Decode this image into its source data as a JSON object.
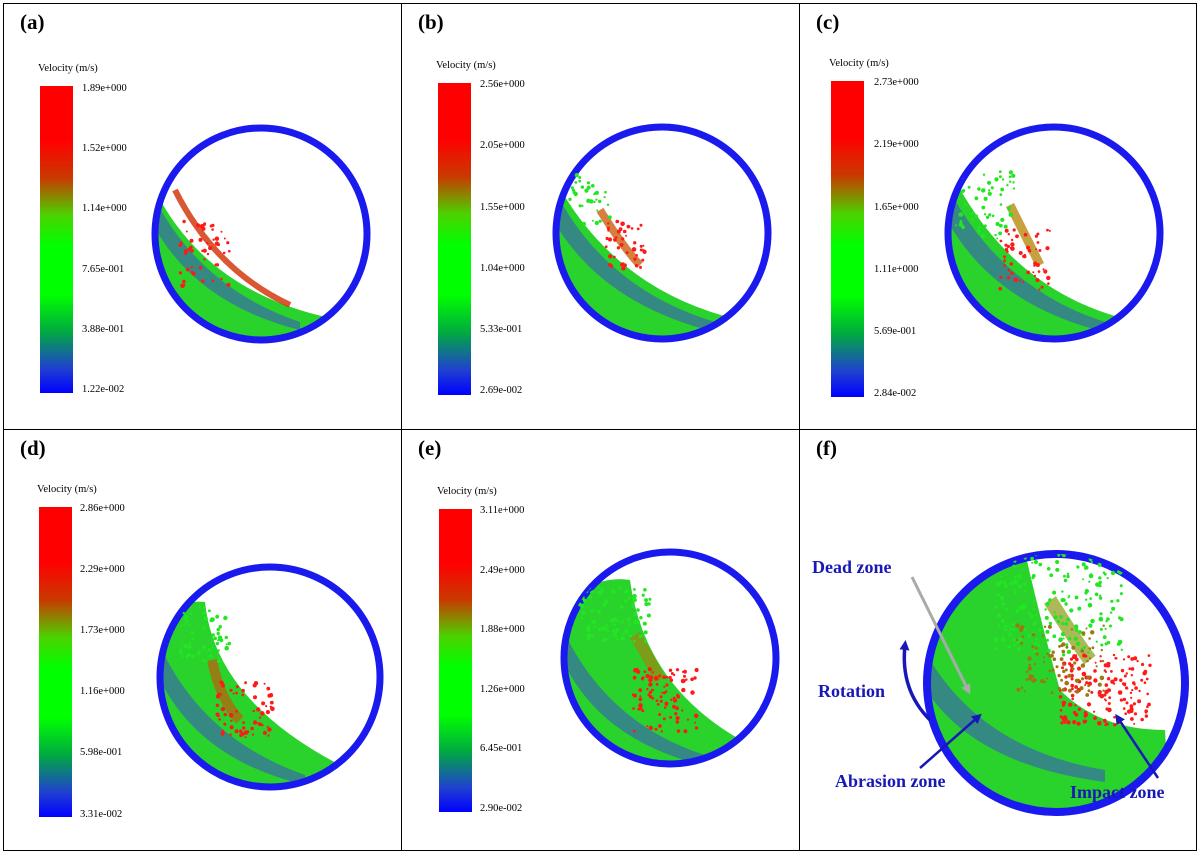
{
  "velocity_label": "Velocity (m/s)",
  "panels": [
    {
      "label": "(a)",
      "ticks": [
        "1.89e+000",
        "1.52e+000",
        "1.14e+000",
        "7.65e-001",
        "3.88e-001",
        "1.22e-002"
      ]
    },
    {
      "label": "(b)",
      "ticks": [
        "2.56e+000",
        "2.05e+000",
        "1.55e+000",
        "1.04e+000",
        "5.33e-001",
        "2.69e-002"
      ]
    },
    {
      "label": "(c)",
      "ticks": [
        "2.73e+000",
        "2.19e+000",
        "1.65e+000",
        "1.11e+000",
        "5.69e-001",
        "2.84e-002"
      ]
    },
    {
      "label": "(d)",
      "ticks": [
        "2.86e+000",
        "2.29e+000",
        "1.73e+000",
        "1.16e+000",
        "5.98e-001",
        "3.31e-002"
      ]
    },
    {
      "label": "(e)",
      "ticks": [
        "3.11e+000",
        "2.49e+000",
        "1.88e+000",
        "1.26e+000",
        "6.45e-001",
        "2.90e-002"
      ]
    },
    {
      "label": "(f)",
      "ticks": []
    }
  ],
  "annotations": {
    "dead_zone": "Dead zone",
    "rotation": "Rotation",
    "abrasion_zone": "Abrasion zone",
    "impact_zone": "Impact zone"
  },
  "colors": {
    "mill_wall": "#1a1aee",
    "annotation": "#1818b8",
    "dead_zone_arrow": "#aaaaaa",
    "velocity_high": "#ff0000",
    "velocity_mid": "#00ff00",
    "velocity_low": "#0000ff"
  }
}
